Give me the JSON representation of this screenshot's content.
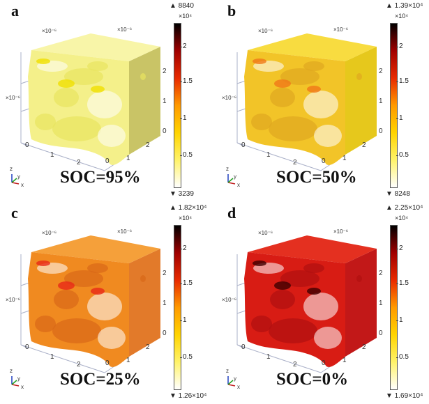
{
  "figure": {
    "axis_exponent_label": "×10⁻⁶",
    "colorbar_exponent_label": "×10⁴",
    "colorbar_ticks": [
      "2",
      "1.5",
      "1",
      "0.5"
    ],
    "axis_ticks": {
      "x": [
        "0",
        "1",
        "2"
      ],
      "y": [
        "0",
        "1",
        "2"
      ],
      "z": [
        "0",
        "1",
        "2"
      ]
    },
    "triad": {
      "z": "z",
      "y": "y",
      "x": "x"
    },
    "colormap": [
      "#ffffff",
      "#fff36a",
      "#ffd400",
      "#ff9a00",
      "#e82a00",
      "#a00000",
      "#000000"
    ],
    "panels": [
      {
        "label": "a",
        "title": "SOC=95%",
        "max": "▲ 8840",
        "min": "▼ 3239",
        "colors": {
          "front": "#f4f08a",
          "top": "#f8f5a8",
          "right": "#c9c466",
          "blob": "#e8e460",
          "accent": "#f0e000"
        }
      },
      {
        "label": "b",
        "title": "SOC=50%",
        "max": "▲ 1.39×10⁴",
        "min": "▼ 8248",
        "colors": {
          "front": "#f2c428",
          "top": "#f8dc40",
          "right": "#e6c81c",
          "blob": "#e0a820",
          "accent": "#f07818"
        }
      },
      {
        "label": "c",
        "title": "SOC=25%",
        "max": "▲ 1.82×10⁴",
        "min": "▼ 1.26×10⁴",
        "colors": {
          "front": "#f08a20",
          "top": "#f5a03a",
          "right": "#e27a2a",
          "blob": "#d86818",
          "accent": "#e82818"
        }
      },
      {
        "label": "d",
        "title": "SOC=0%",
        "max": "▲ 2.25×10⁴",
        "min": "▼ 1.69×10⁴",
        "colors": {
          "front": "#d81c14",
          "top": "#e43020",
          "right": "#c21818",
          "blob": "#b01010",
          "accent": "#400000"
        }
      }
    ]
  }
}
